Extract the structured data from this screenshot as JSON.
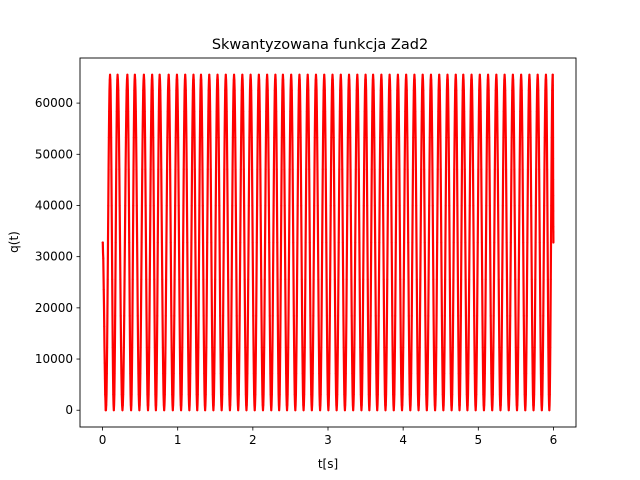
{
  "chart_data": {
    "type": "line",
    "title": "Skwantyzowana funkcja Zad2",
    "xlabel": "t[s]",
    "ylabel": "q(t)",
    "xlim": [
      -0.3,
      6.3
    ],
    "ylim": [
      -3276.75,
      68811.75
    ],
    "x_ticks": [
      0,
      1,
      2,
      3,
      4,
      5,
      6
    ],
    "y_ticks": [
      0,
      10000,
      20000,
      30000,
      40000,
      50000,
      60000
    ],
    "grid": false,
    "legend": "none",
    "series": [
      {
        "color": "#ff0000",
        "marker": "dot",
        "linestyle": "solid",
        "x_start": 0,
        "x_end": 6,
        "y_start": 32767,
        "y_end": 32767,
        "y_min": 0,
        "y_max": 65535,
        "cycles": 55,
        "peak_times_approx": [
          0.1,
          0.2,
          0.33,
          0.43,
          0.55,
          0.66,
          0.76,
          0.88,
          0.99,
          1.1,
          1.21,
          1.31,
          1.42,
          1.53,
          1.64,
          1.75,
          1.86,
          1.97,
          2.08,
          2.19,
          2.3,
          2.4,
          2.51,
          2.62,
          2.73,
          2.84,
          2.95,
          3.06,
          3.17,
          3.28,
          3.39,
          3.5,
          3.6,
          3.71,
          3.82,
          3.93,
          4.04,
          4.15,
          4.26,
          4.37,
          4.48,
          4.59,
          4.7,
          4.8,
          4.91,
          5.02,
          5.13,
          5.24,
          5.35,
          5.46,
          5.57,
          5.68,
          5.79,
          5.9,
          5.99
        ]
      }
    ]
  }
}
